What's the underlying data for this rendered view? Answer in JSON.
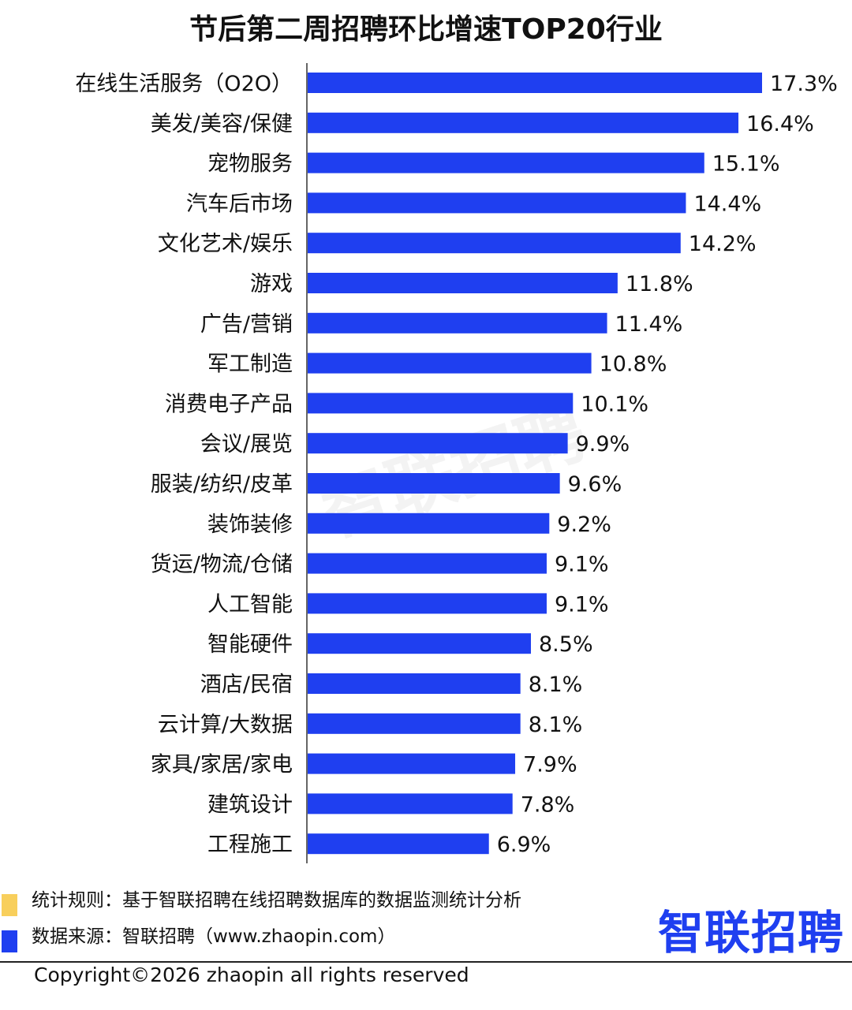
{
  "title": "节后第二周招聘环比增速TOP20行业",
  "chart_data": {
    "type": "bar",
    "orientation": "horizontal",
    "title": "节后第二周招聘环比增速TOP20行业",
    "categories": [
      "在线生活服务（O2O）",
      "美发/美容/保健",
      "宠物服务",
      "汽车后市场",
      "文化艺术/娱乐",
      "游戏",
      "广告/营销",
      "军工制造",
      "消费电子产品",
      "会议/展览",
      "服装/纺织/皮革",
      "装饰装修",
      "货运/物流/仓储",
      "人工智能",
      "智能硬件",
      "酒店/民宿",
      "云计算/大数据",
      "家具/家居/家电",
      "建筑设计",
      "工程施工"
    ],
    "values": [
      17.3,
      16.4,
      15.1,
      14.4,
      14.2,
      11.8,
      11.4,
      10.8,
      10.1,
      9.9,
      9.6,
      9.2,
      9.1,
      9.1,
      8.5,
      8.1,
      8.1,
      7.9,
      7.8,
      6.9
    ],
    "value_labels": [
      "17.3%",
      "16.4%",
      "15.1%",
      "14.4%",
      "14.2%",
      "11.8%",
      "11.4%",
      "10.8%",
      "10.1%",
      "9.9%",
      "9.6%",
      "9.2%",
      "9.1%",
      "9.1%",
      "8.5%",
      "8.1%",
      "8.1%",
      "7.9%",
      "7.8%",
      "6.9%"
    ],
    "xlim": [
      0,
      17.3
    ],
    "grid": false,
    "legend": "none",
    "bar_color": "#1f3ff0"
  },
  "footer": {
    "rule": "统计规则：基于智联招聘在线招聘数据库的数据监测统计分析",
    "source": "数据来源：智联招聘（www.zhaopin.com）",
    "rule_color": "#f8cf5c",
    "source_color": "#1f3ff0"
  },
  "brand": {
    "logo_text": "智联招聘",
    "logo_color": "#1f3ff0",
    "watermark_text": "智联招聘"
  },
  "copyright": "Copyright©2026 zhaopin all rights reserved"
}
